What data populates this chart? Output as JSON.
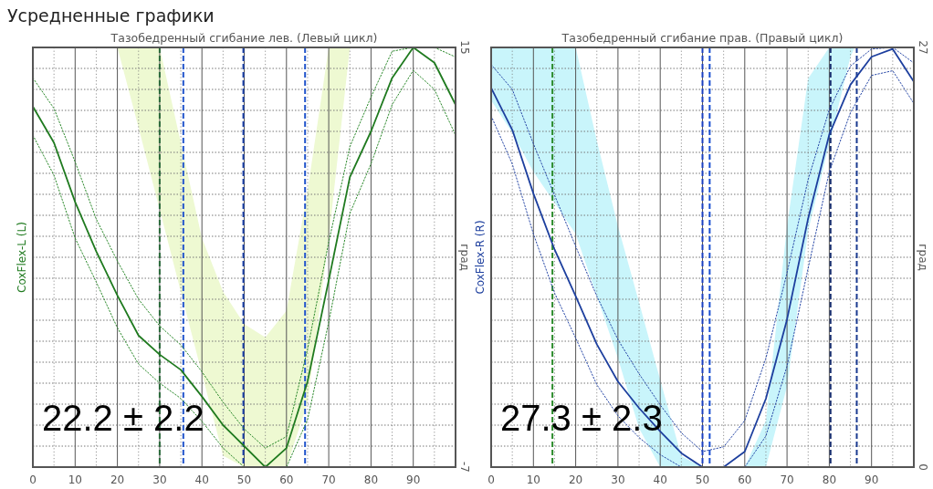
{
  "chart_data": [
    {
      "type": "line",
      "title": "Усредненные графики",
      "subtitle": "Тазобедренный сгибание лев.  (Левый цикл)",
      "ylabel": "град",
      "annotations": [
        "22.2 ± 2.2"
      ],
      "x": [
        0,
        5,
        10,
        15,
        20,
        25,
        30,
        35,
        40,
        45,
        50,
        55,
        60,
        65,
        70,
        75,
        80,
        85,
        90,
        95,
        100
      ],
      "xlim": [
        0,
        100
      ],
      "ylim": [
        -7,
        15
      ],
      "xticks": [
        0,
        {
          "value": 5,
          "label": null
        },
        10,
        {
          "value": 15,
          "label": null
        },
        20,
        {
          "value": 25,
          "label": null
        },
        30,
        {
          "value": 35,
          "label": null
        },
        40,
        {
          "value": 45,
          "label": null
        },
        50,
        {
          "value": 55,
          "label": null
        },
        60,
        {
          "value": 65,
          "label": null
        },
        70,
        {
          "value": 75,
          "label": null
        },
        80,
        {
          "value": 85,
          "label": null
        },
        90,
        {
          "value": 95,
          "label": null
        }
      ],
      "yticks": [
        -7,
        {
          "value": -5.9,
          "label": null
        },
        {
          "value": -4.8,
          "label": null
        },
        {
          "value": -3.7,
          "label": null
        },
        {
          "value": -2.6,
          "label": null
        },
        {
          "value": -1.5,
          "label": null
        },
        {
          "value": -0.4,
          "label": null
        },
        {
          "value": 0.7,
          "label": null
        },
        {
          "value": 1.8,
          "label": null
        },
        {
          "value": 2.9,
          "label": null
        },
        {
          "value": 4,
          "label": null
        },
        {
          "value": 5.1,
          "label": null
        },
        {
          "value": 6.2,
          "label": null
        },
        {
          "value": 7.3,
          "label": null
        },
        {
          "value": 8.4,
          "label": null
        },
        {
          "value": 9.5,
          "label": null
        },
        {
          "value": 10.6,
          "label": null
        },
        {
          "value": 11.7,
          "label": null
        },
        {
          "value": 12.8,
          "label": null
        },
        {
          "value": 13.9,
          "label": null
        },
        15
      ],
      "grid": true,
      "series": [
        {
          "color": "#eef9d2",
          "x": [
            20,
            25,
            30,
            35,
            40,
            45,
            50,
            55,
            60,
            65,
            70,
            75
          ],
          "values": [
            null,
            null,
            null,
            null,
            null,
            null,
            null,
            null,
            null,
            null,
            null,
            null
          ],
          "lower": [
            15,
            10.8,
            6.5,
            2.2,
            -2.1,
            -6.4,
            -7,
            -7,
            -7,
            -3.6,
            5,
            15
          ],
          "upper": [
            15,
            15,
            15,
            10,
            5,
            2.2,
            0.5,
            -0.2,
            1.2,
            7.5,
            15,
            15
          ]
        },
        {
          "name": "CoxFlex-L (L)",
          "color": "#1f7a1f",
          "values": [
            11.9,
            10,
            6.9,
            4.3,
            2,
            -0.1,
            -1.1,
            -1.9,
            -3.3,
            -4.8,
            -5.9,
            -7,
            -6,
            -2.5,
            2.8,
            8.2,
            10.6,
            13.4,
            15,
            14.2,
            12
          ]
        },
        {
          "color": "#2e8b2e",
          "line_style": "dotted",
          "values": [
            13.4,
            11.8,
            9,
            6,
            3.8,
            1.8,
            0.4,
            -0.6,
            -2,
            -3.6,
            -5,
            -6,
            -5.4,
            -0.8,
            4.8,
            9.8,
            12.4,
            14.8,
            15,
            15,
            14.5
          ]
        },
        {
          "color": "#2e8b2e",
          "line_style": "dotted",
          "values": [
            10.4,
            8.3,
            5,
            2.7,
            0.3,
            -1.6,
            -2.6,
            -3.4,
            -4.6,
            -6,
            -7,
            -7,
            -7,
            -4.5,
            0.6,
            6.3,
            8.9,
            12,
            13.8,
            12.8,
            10.4
          ]
        }
      ],
      "ref_lines": [
        {
          "axis": "x",
          "value": 30,
          "color": "#2a6a3a",
          "line_style": "dashed"
        },
        {
          "axis": "x",
          "value": 35.6,
          "color": "#2255cc",
          "line_style": "dashed"
        },
        {
          "axis": "x",
          "value": 49.8,
          "color": "#1a3fa8",
          "line_style": "dashed"
        },
        {
          "axis": "x",
          "value": 64.4,
          "color": "#2255cc",
          "line_style": "dashed"
        }
      ]
    },
    {
      "type": "line",
      "subtitle": "Тазобедренный сгибание прав.  (Правый цикл)",
      "ylabel": "град",
      "annotations": [
        "27.3 ± 2.3"
      ],
      "x": [
        0,
        5,
        10,
        15,
        20,
        25,
        30,
        35,
        40,
        45,
        50,
        55,
        60,
        65,
        70,
        75,
        80,
        85,
        90,
        95,
        100
      ],
      "xlim": [
        0,
        100
      ],
      "ylim": [
        0,
        27
      ],
      "xticks": [
        0,
        {
          "value": 5,
          "label": null
        },
        10,
        {
          "value": 15,
          "label": null
        },
        20,
        {
          "value": 25,
          "label": null
        },
        30,
        {
          "value": 35,
          "label": null
        },
        40,
        {
          "value": 45,
          "label": null
        },
        50,
        {
          "value": 55,
          "label": null
        },
        60,
        {
          "value": 65,
          "label": null
        },
        70,
        {
          "value": 75,
          "label": null
        },
        80,
        {
          "value": 85,
          "label": null
        },
        90,
        {
          "value": 95,
          "label": null
        }
      ],
      "yticks": [
        0,
        {
          "value": 1.35,
          "label": null
        },
        {
          "value": 2.7,
          "label": null
        },
        {
          "value": 4.05,
          "label": null
        },
        {
          "value": 5.4,
          "label": null
        },
        {
          "value": 6.75,
          "label": null
        },
        {
          "value": 8.1,
          "label": null
        },
        {
          "value": 9.45,
          "label": null
        },
        {
          "value": 10.8,
          "label": null
        },
        {
          "value": 12.15,
          "label": null
        },
        {
          "value": 13.5,
          "label": null
        },
        {
          "value": 14.85,
          "label": null
        },
        {
          "value": 16.2,
          "label": null
        },
        {
          "value": 17.55,
          "label": null
        },
        {
          "value": 18.9,
          "label": null
        },
        {
          "value": 20.25,
          "label": null
        },
        {
          "value": 21.6,
          "label": null
        },
        {
          "value": 22.95,
          "label": null
        },
        {
          "value": 24.3,
          "label": null
        },
        {
          "value": 25.65,
          "label": null
        },
        27
      ],
      "grid": true,
      "series": [
        {
          "color": "#c9f5fb",
          "x": [
            0,
            5,
            10,
            15,
            20,
            25,
            30,
            35,
            40,
            45,
            50,
            55,
            60,
            65,
            70,
            75,
            80,
            85,
            86
          ],
          "values": [
            null,
            null,
            null,
            null,
            null,
            null,
            null,
            null,
            null,
            null,
            null,
            null,
            null,
            null,
            null,
            null,
            null,
            null,
            null
          ],
          "lower": [
            23.6,
            21.5,
            19,
            17,
            15,
            11,
            7,
            2.5,
            0,
            0,
            0,
            0,
            0,
            0,
            5.2,
            15.2,
            20.8,
            26.4,
            27
          ],
          "upper": [
            27,
            27,
            27,
            27,
            27,
            21,
            15.5,
            10.6,
            5.6,
            0.7,
            0,
            0,
            0,
            3,
            15.5,
            25,
            27,
            27,
            27
          ]
        },
        {
          "name": "CoxFlex-R (R)",
          "color": "#1d3f9e",
          "values": [
            24.4,
            21.7,
            17.6,
            14,
            11,
            7.9,
            5.5,
            3.8,
            2.3,
            0.9,
            0,
            0,
            1,
            4.4,
            9.5,
            16,
            21.4,
            24.6,
            26.4,
            26.9,
            24.8
          ]
        },
        {
          "color": "#2a4aa8",
          "line_style": "dotted",
          "values": [
            25.9,
            24.3,
            20.8,
            17.5,
            14.2,
            11,
            8.2,
            6,
            4,
            2.2,
            1,
            1.3,
            3,
            7,
            12.5,
            18.5,
            23,
            25.8,
            26.9,
            27,
            26
          ]
        },
        {
          "color": "#2a4aa8",
          "line_style": "dotted",
          "values": [
            22.6,
            19.5,
            15,
            11.2,
            8.3,
            5.3,
            3.3,
            1.9,
            0.8,
            0,
            0,
            0,
            0,
            2,
            6.5,
            12.8,
            19,
            22.8,
            25.2,
            25.5,
            23.4
          ]
        }
      ],
      "ref_lines": [
        {
          "axis": "x",
          "value": 14.5,
          "color": "#2a8a2a",
          "line_style": "dashed"
        },
        {
          "axis": "x",
          "value": 50,
          "color": "#1a3fc0",
          "line_style": "dashed"
        },
        {
          "axis": "x",
          "value": 51.7,
          "color": "#1a4fd0",
          "line_style": "dashed"
        },
        {
          "axis": "x",
          "value": 80.3,
          "color": "#1a3070",
          "line_style": "dashed"
        },
        {
          "axis": "x",
          "value": 86.5,
          "color": "#1a3a90",
          "line_style": "dashed"
        }
      ]
    }
  ]
}
